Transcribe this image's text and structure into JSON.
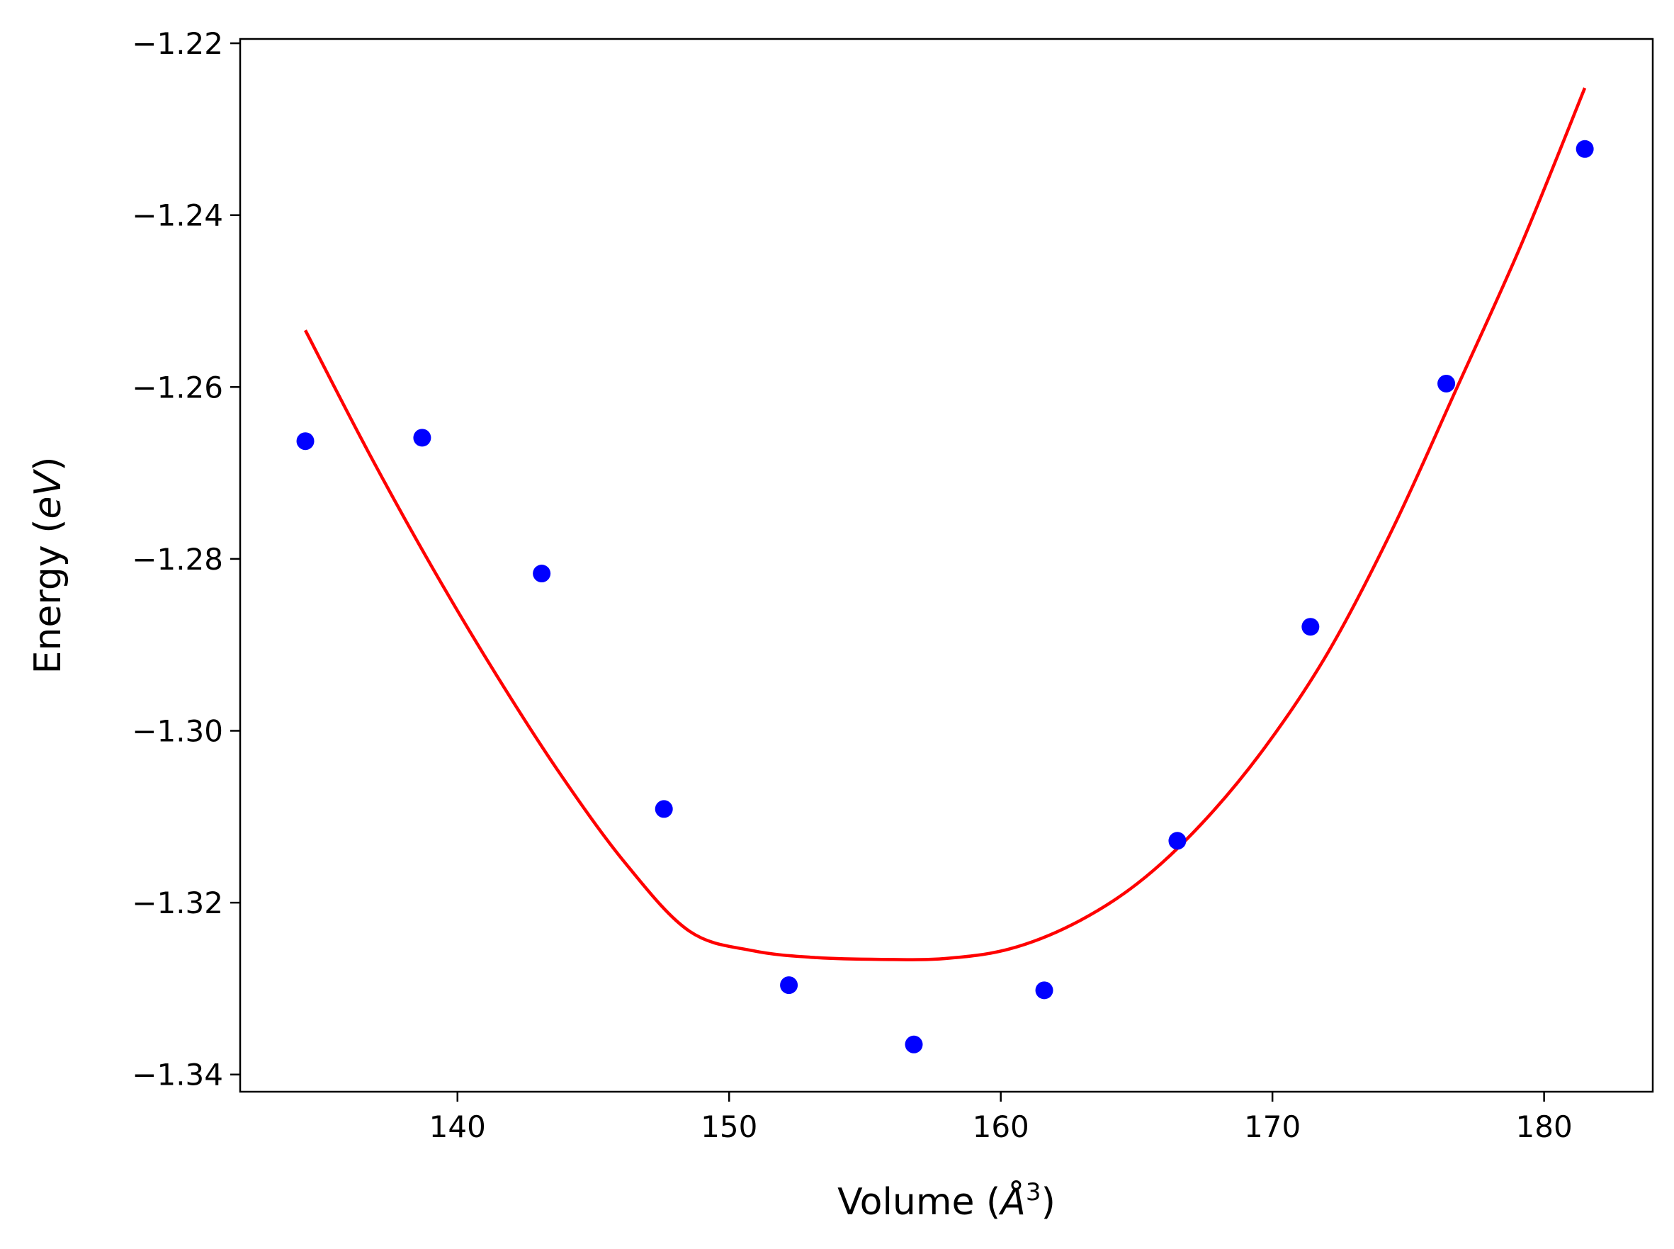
{
  "chart_data": {
    "type": "scatter",
    "title": "",
    "xlabel": {
      "prefix": "Volume (",
      "symbol": "Å",
      "superscript": "3",
      "suffix": ")"
    },
    "ylabel": {
      "prefix": "Energy (",
      "symbol": "eV",
      "suffix": ")"
    },
    "xlim": [
      132.0,
      184.0
    ],
    "ylim": [
      -1.342,
      -1.2195
    ],
    "xticks": [
      "140",
      "150",
      "160",
      "170",
      "180"
    ],
    "yticks": [
      "−1.34",
      "−1.32",
      "−1.30",
      "−1.28",
      "−1.26",
      "−1.24",
      "−1.22"
    ],
    "grid": false,
    "legend": "none",
    "series": [
      {
        "kind": "scatter",
        "color": "#0000ff",
        "marker": "circle",
        "x": [
          134.4,
          138.7,
          143.1,
          147.6,
          152.2,
          156.8,
          161.6,
          166.5,
          171.4,
          176.4,
          181.5
        ],
        "y": [
          -1.2663,
          -1.2659,
          -1.2817,
          -1.3091,
          -1.3296,
          -1.3365,
          -1.3302,
          -1.3128,
          -1.2879,
          -1.2596,
          -1.2323
        ]
      },
      {
        "kind": "line",
        "color": "#ff0000",
        "curve": "fit",
        "x": [
          134.4,
          136.76,
          139.11,
          141.47,
          143.82,
          146.18,
          148.53,
          150.89,
          153.24,
          155.6,
          157.95,
          160.31,
          162.66,
          165.02,
          167.37,
          169.73,
          172.08,
          174.44,
          176.79,
          179.15,
          181.5
        ],
        "y": [
          -1.2534,
          -1.2678,
          -1.2812,
          -1.2937,
          -1.3052,
          -1.3154,
          -1.3233,
          -1.3256,
          -1.3264,
          -1.3266,
          -1.3265,
          -1.3254,
          -1.3225,
          -1.3178,
          -1.3109,
          -1.3019,
          -1.2907,
          -1.2764,
          -1.2601,
          -1.2435,
          -1.2252
        ]
      }
    ]
  }
}
